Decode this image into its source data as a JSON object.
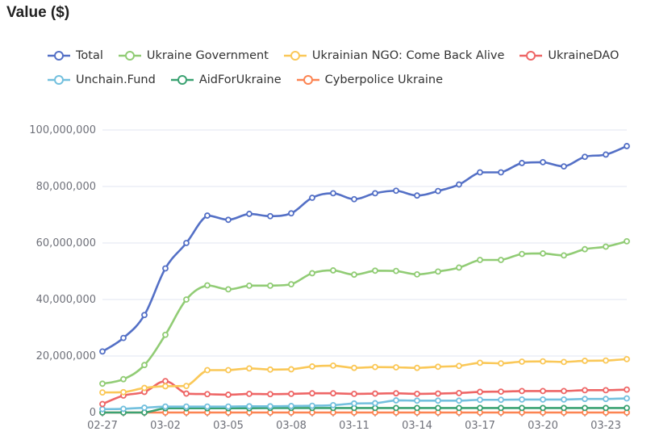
{
  "title": "Value ($)",
  "colors": {
    "Total": "#5470c6",
    "Ukraine Government": "#91cc75",
    "Ukrainian NGO: Come Back Alive": "#fac858",
    "UkraineDAO": "#ee6666",
    "Unchain.Fund": "#73c0de",
    "AidForUkraine": "#3ba272",
    "Cyberpolice Ukraine": "#fc8452"
  },
  "legend_rows": [
    [
      "Total",
      "Ukraine Government",
      "Ukrainian NGO: Come Back Alive",
      "UkraineDAO"
    ],
    [
      "Unchain.Fund",
      "AidForUkraine",
      "Cyberpolice Ukraine"
    ]
  ],
  "chart_data": {
    "type": "line",
    "title": "Value ($)",
    "xlabel": "",
    "ylabel": "",
    "smooth": true,
    "grid": "horizontal",
    "legend_position": "top",
    "ylim": [
      0,
      100000000
    ],
    "y_ticks": [
      0,
      20000000,
      40000000,
      60000000,
      80000000,
      100000000
    ],
    "y_tick_labels": [
      "0",
      "20,000,000",
      "40,000,000",
      "60,000,000",
      "80,000,000",
      "100,000,000"
    ],
    "x": [
      "02-27",
      "02-28",
      "03-01",
      "03-02",
      "03-03",
      "03-04",
      "03-05",
      "03-06",
      "03-07",
      "03-08",
      "03-09",
      "03-10",
      "03-11",
      "03-12",
      "03-13",
      "03-14",
      "03-15",
      "03-16",
      "03-17",
      "03-18",
      "03-19",
      "03-20",
      "03-21",
      "03-22",
      "03-23",
      "03-24"
    ],
    "x_tick_labels": [
      "02-27",
      "",
      "",
      "03-02",
      "",
      "",
      "03-05",
      "",
      "",
      "03-08",
      "",
      "",
      "03-11",
      "",
      "",
      "03-14",
      "",
      "",
      "03-17",
      "",
      "",
      "03-20",
      "",
      "",
      "03-23",
      ""
    ],
    "series": [
      {
        "name": "Total",
        "values": [
          21600000,
          26400000,
          34500000,
          51000000,
          60000000,
          69700000,
          68200000,
          70300000,
          69500000,
          70500000,
          76000000,
          77600000,
          75500000,
          77600000,
          78500000,
          76800000,
          78400000,
          80700000,
          85000000,
          85000000,
          88300000,
          88600000,
          87100000,
          90500000,
          91300000,
          94300000
        ]
      },
      {
        "name": "Ukraine Government",
        "values": [
          10200000,
          11800000,
          16800000,
          27500000,
          40000000,
          45000000,
          43600000,
          44900000,
          44900000,
          45400000,
          49300000,
          50300000,
          48800000,
          50200000,
          50100000,
          48900000,
          49900000,
          51300000,
          54000000,
          54000000,
          56100000,
          56300000,
          55600000,
          57800000,
          58700000,
          60600000
        ]
      },
      {
        "name": "Ukrainian NGO: Come Back Alive",
        "values": [
          7100000,
          7200000,
          8700000,
          9300000,
          9400000,
          15000000,
          15000000,
          15600000,
          15200000,
          15300000,
          16300000,
          16600000,
          15800000,
          16100000,
          16000000,
          15800000,
          16200000,
          16500000,
          17600000,
          17400000,
          18000000,
          18100000,
          17900000,
          18300000,
          18400000,
          18900000
        ]
      },
      {
        "name": "UkraineDAO",
        "values": [
          3000000,
          6000000,
          7300000,
          11100000,
          6700000,
          6500000,
          6300000,
          6600000,
          6500000,
          6600000,
          6800000,
          6800000,
          6600000,
          6700000,
          6800000,
          6600000,
          6700000,
          6900000,
          7300000,
          7400000,
          7600000,
          7600000,
          7600000,
          7900000,
          7900000,
          8100000
        ]
      },
      {
        "name": "Unchain.Fund",
        "values": [
          1200000,
          1300000,
          1700000,
          2100000,
          2100000,
          2100000,
          2100000,
          2200000,
          2200000,
          2300000,
          2400000,
          2600000,
          3200000,
          3300000,
          4300000,
          4200000,
          4200000,
          4200000,
          4500000,
          4500000,
          4600000,
          4600000,
          4600000,
          4800000,
          4800000,
          5000000
        ]
      },
      {
        "name": "AidForUkraine",
        "values": [
          0,
          0,
          0,
          1500000,
          1500000,
          1500000,
          1500000,
          1500000,
          1600000,
          1600000,
          1600000,
          1600000,
          1600000,
          1600000,
          1600000,
          1600000,
          1600000,
          1600000,
          1600000,
          1600000,
          1600000,
          1600000,
          1600000,
          1600000,
          1600000,
          1600000
        ]
      },
      {
        "name": "Cyberpolice Ukraine",
        "values": [
          0,
          0,
          0,
          0,
          0,
          0,
          0,
          0,
          0,
          0,
          0,
          0,
          0,
          0,
          0,
          0,
          0,
          0,
          0,
          0,
          0,
          0,
          0,
          0,
          0,
          0
        ]
      }
    ]
  }
}
